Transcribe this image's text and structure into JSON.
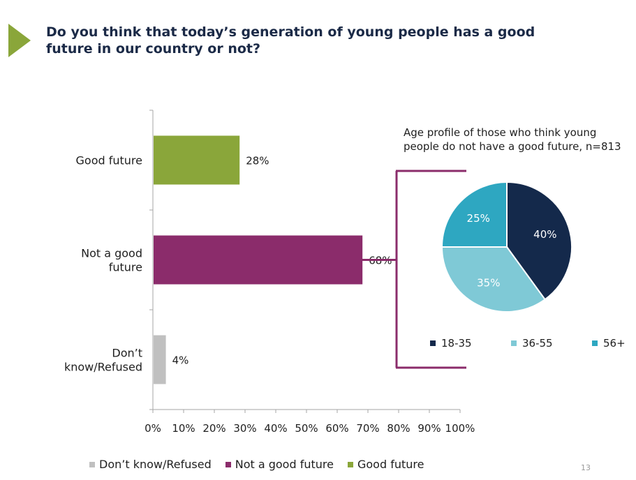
{
  "slide": {
    "title": "Do you think that today’s generation of young people has a good future in our country or not?",
    "page_number": "13"
  },
  "colors": {
    "accent": "#8aa63a",
    "good_future": "#8aa63a",
    "not_good_future": "#8b2c6b",
    "dont_know": "#c0c0c0",
    "age_18_35": "#14294b",
    "age_36_55": "#7fc9d6",
    "age_56_plus": "#2ea7c1",
    "connector": "#8b2c6b"
  },
  "chart_data": [
    {
      "type": "bar",
      "orientation": "horizontal",
      "categories": [
        "Good future",
        "Not a good future",
        "Don’t know/Refused"
      ],
      "category_lines": [
        [
          "Good future"
        ],
        [
          "Not a good",
          "future"
        ],
        [
          "Don’t",
          "know/Refused"
        ]
      ],
      "values": [
        28,
        68,
        4
      ],
      "data_labels": [
        "28%",
        "68%",
        "4%"
      ],
      "colors": [
        "#8aa63a",
        "#8b2c6b",
        "#c0c0c0"
      ],
      "xlim": [
        0,
        100
      ],
      "xticks": [
        "0%",
        "10%",
        "20%",
        "30%",
        "40%",
        "50%",
        "60%",
        "70%",
        "80%",
        "90%",
        "100%"
      ],
      "legend": [
        "Don’t know/Refused",
        "Not a good future",
        "Good future"
      ],
      "legend_colors": [
        "#c0c0c0",
        "#8b2c6b",
        "#8aa63a"
      ],
      "legend_position": "bottom"
    },
    {
      "type": "pie",
      "title": "Age profile of those who think young people do not have a good future, n=813",
      "labels": [
        "18-35",
        "36-55",
        "56+"
      ],
      "values": [
        40,
        35,
        25
      ],
      "data_labels": [
        "40%",
        "35%",
        "25%"
      ],
      "colors": [
        "#14294b",
        "#7fc9d6",
        "#2ea7c1"
      ],
      "label_colors": [
        "#ffffff",
        "#ffffff",
        "#ffffff"
      ],
      "legend_position": "bottom"
    }
  ]
}
